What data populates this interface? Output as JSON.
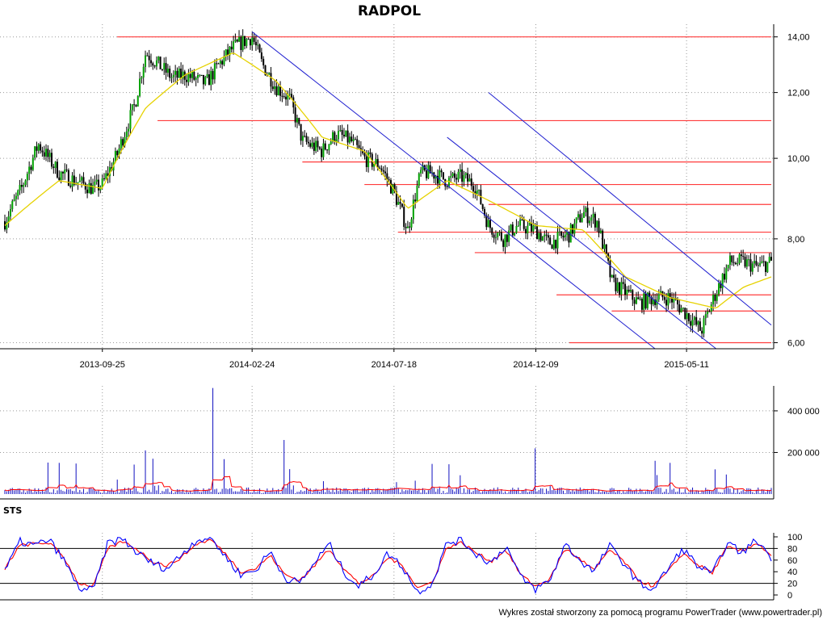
{
  "title": "RADPOL",
  "footer": "Wykres został stworzony za pomocą programu PowerTrader (www.powertrader.pl)",
  "colors": {
    "support_resistance": "#ff3b3b",
    "trend_channel": "#2020d0",
    "moving_average": "#e6d200",
    "candle_body": "#000000",
    "candle_green": "#00a000",
    "volume": "#1010c0",
    "volume_avg": "#ff0000",
    "stoch_k": "#0000ff",
    "stoch_d": "#ff0000",
    "grid": "#9a9a9a"
  },
  "chart_data": [
    {
      "type": "line",
      "panel": "price",
      "title": "RADPOL",
      "x_tick_labels": [
        "2013-09-25",
        "2014-02-24",
        "2014-07-18",
        "2014-12-09",
        "2015-05-11"
      ],
      "y_tick_labels": [
        "14,00",
        "12,00",
        "10,00",
        "8,00",
        "6,00"
      ],
      "ylim": [
        5.9,
        14.5
      ],
      "y_scale": "log",
      "grid": true,
      "series": [
        {
          "kind": "close",
          "x": [
            "2013-06-18",
            "2013-07-05",
            "2013-07-22",
            "2013-08-12",
            "2013-08-28",
            "2013-09-16",
            "2013-09-25",
            "2013-10-10",
            "2013-10-28",
            "2013-11-08",
            "2013-11-20",
            "2013-12-05",
            "2013-12-18",
            "2014-01-08",
            "2014-01-22",
            "2014-02-05",
            "2014-02-24",
            "2014-03-06",
            "2014-03-20",
            "2014-04-03",
            "2014-04-16",
            "2014-05-06",
            "2014-05-20",
            "2014-06-04",
            "2014-06-18",
            "2014-07-04",
            "2014-07-18",
            "2014-08-01",
            "2014-08-14",
            "2014-08-26",
            "2014-09-10",
            "2014-09-24",
            "2014-10-08",
            "2014-10-22",
            "2014-11-06",
            "2014-11-20",
            "2014-12-09",
            "2014-12-22",
            "2015-01-12",
            "2015-01-26",
            "2015-02-09",
            "2015-02-24",
            "2015-03-10",
            "2015-03-24",
            "2015-04-09",
            "2015-04-24",
            "2015-05-11",
            "2015-05-26",
            "2015-06-10",
            "2015-06-24",
            "2015-07-08",
            "2015-07-22",
            "2015-08-05"
          ],
          "values": [
            8.4,
            9.2,
            10.4,
            9.6,
            9.4,
            9.2,
            9.3,
            10.1,
            11.6,
            13.4,
            13.0,
            12.5,
            12.6,
            12.3,
            13.0,
            13.6,
            14.0,
            13.0,
            12.2,
            11.8,
            10.5,
            10.2,
            10.7,
            10.5,
            10.0,
            9.8,
            9.1,
            8.2,
            9.6,
            9.6,
            9.4,
            9.5,
            9.3,
            8.3,
            8.0,
            8.3,
            8.2,
            7.9,
            8.1,
            8.6,
            8.4,
            7.1,
            6.9,
            6.7,
            6.8,
            6.8,
            6.5,
            6.2,
            6.9,
            7.5,
            7.5,
            7.4,
            7.5
          ]
        },
        {
          "kind": "moving_average",
          "x": [
            "2013-06-18",
            "2013-08-12",
            "2013-09-25",
            "2013-11-08",
            "2013-12-18",
            "2014-02-05",
            "2014-03-20",
            "2014-05-06",
            "2014-06-18",
            "2014-08-01",
            "2014-09-10",
            "2014-10-22",
            "2014-12-09",
            "2015-01-26",
            "2015-03-10",
            "2015-04-24",
            "2015-06-10",
            "2015-07-08",
            "2015-08-05"
          ],
          "values": [
            8.3,
            9.4,
            9.2,
            11.5,
            12.6,
            13.4,
            12.4,
            10.6,
            10.2,
            8.7,
            9.4,
            8.9,
            8.3,
            8.2,
            7.2,
            6.8,
            6.6,
            7.0,
            7.2
          ]
        }
      ],
      "horizontal_levels": [
        {
          "value": 14.0,
          "from": "2013-10-10",
          "to": "2015-08-05"
        },
        {
          "value": 11.1,
          "from": "2013-11-20",
          "to": "2015-08-05"
        },
        {
          "value": 9.9,
          "from": "2014-04-16",
          "to": "2015-08-05"
        },
        {
          "value": 9.3,
          "from": "2014-06-18",
          "to": "2015-08-05"
        },
        {
          "value": 8.8,
          "from": "2014-10-22",
          "to": "2015-08-05"
        },
        {
          "value": 8.15,
          "from": "2014-07-22",
          "to": "2015-08-05"
        },
        {
          "value": 7.7,
          "from": "2014-10-08",
          "to": "2015-08-05"
        },
        {
          "value": 6.85,
          "from": "2014-12-30",
          "to": "2015-08-05"
        },
        {
          "value": 6.55,
          "from": "2015-02-24",
          "to": "2015-08-05"
        },
        {
          "value": 6.0,
          "from": "2015-01-12",
          "to": "2015-08-05"
        }
      ],
      "trend_lines": [
        {
          "from": {
            "x": "2014-02-24",
            "y": 14.2
          },
          "to": {
            "x": "2015-04-09",
            "y": 5.9
          }
        },
        {
          "from": {
            "x": "2014-09-10",
            "y": 10.6
          },
          "to": {
            "x": "2015-06-10",
            "y": 5.9
          }
        },
        {
          "from": {
            "x": "2014-10-22",
            "y": 12.0
          },
          "to": {
            "x": "2015-08-05",
            "y": 6.3
          }
        }
      ]
    },
    {
      "type": "bar",
      "panel": "volume",
      "y_tick_labels": [
        "400 000",
        "200 000"
      ],
      "ylim": [
        0,
        520000
      ],
      "grid": true,
      "spikes": [
        {
          "x": "2013-08-12",
          "value": 150000
        },
        {
          "x": "2013-11-08",
          "value": 210000
        },
        {
          "x": "2014-01-15",
          "value": 510000
        },
        {
          "x": "2014-03-28",
          "value": 260000
        },
        {
          "x": "2014-08-26",
          "value": 145000
        },
        {
          "x": "2014-12-09",
          "value": 220000
        },
        {
          "x": "2015-04-09",
          "value": 160000
        },
        {
          "x": "2015-04-24",
          "value": 150000
        }
      ],
      "baseline_level": 20000
    },
    {
      "type": "line",
      "panel": "STS",
      "title": "STS",
      "y_tick_labels": [
        "100",
        "80",
        "60",
        "40",
        "20",
        "0"
      ],
      "ylim": [
        0,
        100
      ],
      "reference_levels": [
        80,
        20
      ],
      "series": [
        {
          "kind": "stoch_k",
          "values": [
            40,
            92,
            85,
            95,
            60,
            12,
            8,
            90,
            96,
            72,
            55,
            45,
            70,
            95,
            98,
            65,
            35,
            42,
            75,
            30,
            20,
            55,
            88,
            40,
            15,
            35,
            72,
            48,
            5,
            20,
            90,
            94,
            70,
            55,
            85,
            30,
            10,
            25,
            88,
            60,
            40,
            85,
            55,
            20,
            10,
            45,
            80,
            50,
            35,
            90,
            72,
            95,
            65
          ]
        },
        {
          "kind": "stoch_d",
          "values": [
            45,
            85,
            88,
            90,
            65,
            20,
            15,
            80,
            92,
            78,
            58,
            50,
            65,
            88,
            95,
            70,
            40,
            45,
            68,
            35,
            25,
            50,
            80,
            45,
            20,
            32,
            65,
            50,
            12,
            22,
            82,
            90,
            72,
            58,
            78,
            35,
            15,
            28,
            80,
            62,
            42,
            78,
            58,
            25,
            15,
            40,
            72,
            52,
            38,
            82,
            75,
            90,
            68
          ]
        }
      ]
    }
  ]
}
